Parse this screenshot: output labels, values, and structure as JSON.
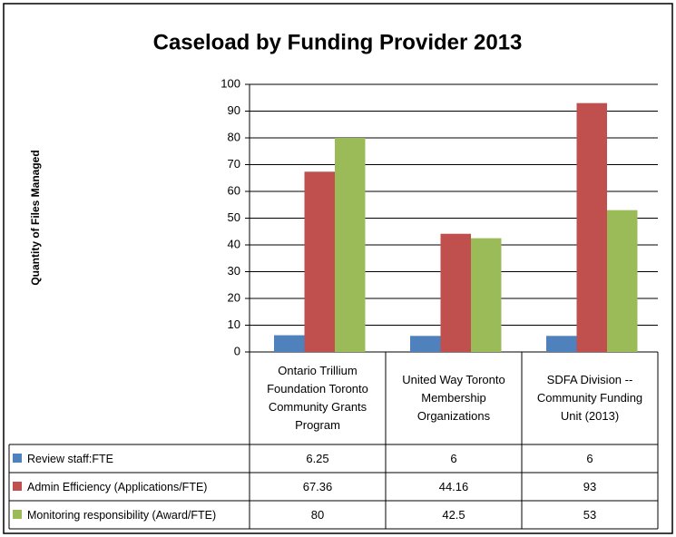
{
  "chart_data": {
    "type": "bar",
    "title": "Caseload by Funding Provider 2013",
    "ylabel": "Quantity of Files Managed",
    "categories": [
      "Ontario Trillium Foundation Toronto Community Grants Program",
      "United Way Toronto Membership Organizations",
      "SDFA Division -- Community Funding Unit (2013)"
    ],
    "series": [
      {
        "name": "Review staff:FTE",
        "color": "#4f81bd",
        "values": [
          6.25,
          6,
          6
        ]
      },
      {
        "name": "Admin Efficiency (Applications/FTE)",
        "color": "#c0504d",
        "values": [
          67.36,
          44.16,
          93
        ]
      },
      {
        "name": "Monitoring responsibility (Award/FTE)",
        "color": "#9bbb59",
        "values": [
          80,
          42.5,
          53
        ]
      }
    ],
    "ylim": [
      0,
      100
    ],
    "yticks": [
      0,
      10,
      20,
      30,
      40,
      50,
      60,
      70,
      80,
      90,
      100
    ],
    "grid": true
  }
}
